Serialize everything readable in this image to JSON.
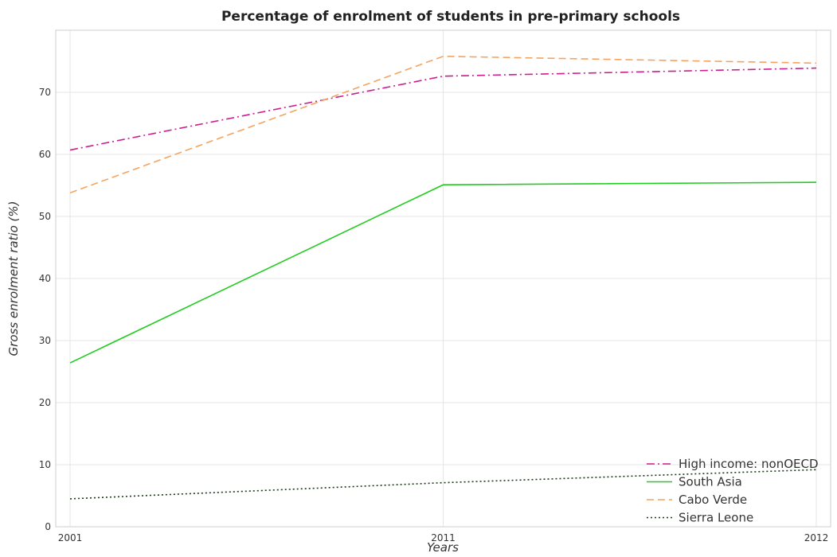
{
  "chart_data": {
    "type": "line",
    "title": "Percentage of enrolment of students in pre-primary schools",
    "xlabel": "Years",
    "ylabel": "Gross enrolment ratio (%)",
    "categories": [
      "2001",
      "2011",
      "2012"
    ],
    "ylim": [
      0,
      80
    ],
    "yticks": [
      0,
      10,
      20,
      30,
      40,
      50,
      60,
      70
    ],
    "grid": true,
    "legend_position": "bottom-right",
    "series": [
      {
        "name": "High income: nonOECD",
        "color": "#cc1f8f",
        "dash": "dashdot",
        "values": [
          60.7,
          72.6,
          73.9
        ]
      },
      {
        "name": "South Asia",
        "color": "#22cc22",
        "dash": "solid",
        "values": [
          26.4,
          55.1,
          55.5
        ]
      },
      {
        "name": "Cabo Verde",
        "color": "#f4a460",
        "dash": "dashed",
        "values": [
          53.8,
          75.8,
          74.7
        ]
      },
      {
        "name": "Sierra Leone",
        "color": "#1a3a1a",
        "dash": "dotted",
        "values": [
          4.5,
          7.1,
          9.2
        ]
      }
    ]
  }
}
